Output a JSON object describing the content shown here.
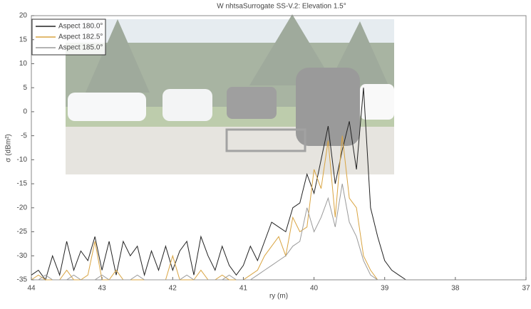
{
  "chart_data": {
    "type": "line",
    "title": "W nhtsaSurrogate SS-V.2:  Elevation 1.5°",
    "x_label": "ry (m)",
    "y_label": "σ (dBm²)",
    "x": [
      44.0,
      43.9,
      43.8,
      43.7,
      43.6,
      43.5,
      43.4,
      43.3,
      43.2,
      43.1,
      43.0,
      42.9,
      42.8,
      42.7,
      42.6,
      42.5,
      42.4,
      42.3,
      42.2,
      42.1,
      42.0,
      41.9,
      41.8,
      41.7,
      41.6,
      41.5,
      41.4,
      41.3,
      41.2,
      41.1,
      41.0,
      40.9,
      40.8,
      40.7,
      40.6,
      40.5,
      40.4,
      40.3,
      40.2,
      40.1,
      40.0,
      39.9,
      39.8,
      39.7,
      39.6,
      39.5,
      39.4,
      39.3,
      39.2,
      39.1,
      39.0,
      38.9,
      38.8,
      38.7
    ],
    "series": [
      {
        "name": "Aspect 180.0°",
        "color": "#222222",
        "values": [
          -34,
          -33,
          -35,
          -30,
          -34,
          -27,
          -33,
          -29,
          -31,
          -26,
          -33,
          -27,
          -34,
          -27,
          -30,
          -28,
          -34,
          -29,
          -33,
          -28,
          -33,
          -29,
          -27,
          -34,
          -26,
          -30,
          -33,
          -28,
          -32,
          -34,
          -32,
          -28,
          -31,
          -27,
          -23,
          -24,
          -25,
          -20,
          -19,
          -13,
          -17,
          -10,
          -3,
          -15,
          -8,
          -2,
          -12,
          5,
          -20,
          -26,
          -31,
          -33,
          -34,
          -35
        ]
      },
      {
        "name": "Aspect 182.5°",
        "color": "#d9a441",
        "values": [
          -35,
          -34,
          -35,
          -35,
          -35,
          -33,
          -35,
          -35,
          -34,
          -27,
          -35,
          -35,
          -33,
          -35,
          -35,
          -35,
          -35,
          -35,
          -35,
          -35,
          -30,
          -35,
          -35,
          -35,
          -33,
          -35,
          -35,
          -34,
          -35,
          -35,
          -35,
          -34,
          -33,
          -30,
          -28,
          -26,
          -30,
          -22,
          -25,
          -24,
          -12,
          -16,
          -6,
          -22,
          -5,
          -18,
          -20,
          -30,
          -33,
          -35,
          -35,
          -35,
          -35,
          -35
        ]
      },
      {
        "name": "Aspect 185.0°",
        "color": "#9a9a9a",
        "values": [
          -35,
          -35,
          -34,
          -35,
          -35,
          -35,
          -34,
          -35,
          -35,
          -35,
          -34,
          -35,
          -35,
          -35,
          -35,
          -34,
          -35,
          -35,
          -35,
          -35,
          -35,
          -35,
          -34,
          -35,
          -35,
          -35,
          -35,
          -35,
          -34,
          -35,
          -35,
          -35,
          -34,
          -33,
          -32,
          -31,
          -30,
          -28,
          -27,
          -20,
          -25,
          -22,
          -18,
          -24,
          -15,
          -23,
          -26,
          -31,
          -34,
          -35,
          -35,
          -35,
          -35,
          -35
        ]
      }
    ],
    "xlim": [
      44,
      37
    ],
    "xticks": [
      44,
      43,
      42,
      41,
      40,
      39,
      38,
      37
    ],
    "ylim": [
      -35,
      20
    ],
    "yticks": [
      20,
      15,
      10,
      5,
      0,
      -5,
      -10,
      -15,
      -20,
      -25,
      -30,
      -35
    ],
    "legend": "upper-left"
  }
}
